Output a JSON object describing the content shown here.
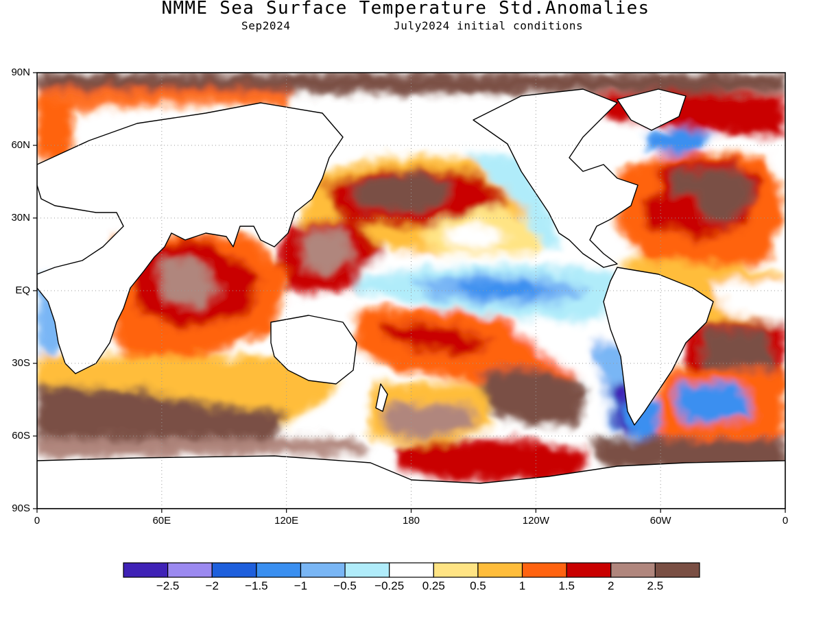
{
  "header": {
    "title": "NMME Sea Surface Temperature Std.Anomalies",
    "forecast_month": "Sep2024",
    "initial_conditions": "July2024 initial conditions"
  },
  "map": {
    "projection": "equirectangular",
    "lon_range": [
      0,
      360
    ],
    "lat_range": [
      -90,
      90
    ],
    "gridlines": "dotted",
    "lat_ticks": [
      {
        "value": 90,
        "label": "90N"
      },
      {
        "value": 60,
        "label": "60N"
      },
      {
        "value": 30,
        "label": "30N"
      },
      {
        "value": 0,
        "label": "EQ"
      },
      {
        "value": -30,
        "label": "30S"
      },
      {
        "value": -60,
        "label": "60S"
      },
      {
        "value": -90,
        "label": "90S"
      }
    ],
    "lon_ticks": [
      {
        "value": 0,
        "label": "0"
      },
      {
        "value": 60,
        "label": "60E"
      },
      {
        "value": 120,
        "label": "120E"
      },
      {
        "value": 180,
        "label": "180"
      },
      {
        "value": 240,
        "label": "120W"
      },
      {
        "value": 300,
        "label": "60W"
      },
      {
        "value": 360,
        "label": "0"
      }
    ],
    "ocean_color": "#ffffff",
    "land_color": "#ffffff",
    "coastline_color": "#000000"
  },
  "colorbar": {
    "colors": [
      "#3f22b6",
      "#9b89f0",
      "#1e5fdc",
      "#3a8ff0",
      "#79b6f5",
      "#b0ecfa",
      "#ffffff",
      "#ffe484",
      "#ffbd3b",
      "#ff6310",
      "#c90000",
      "#b0867d",
      "#7a4f44"
    ],
    "labels": [
      "-2.5",
      "-2",
      "-1.5",
      "-1",
      "-0.5",
      "-0.25",
      "0.25",
      "0.5",
      "1",
      "1.5",
      "2",
      "2.5"
    ]
  }
}
